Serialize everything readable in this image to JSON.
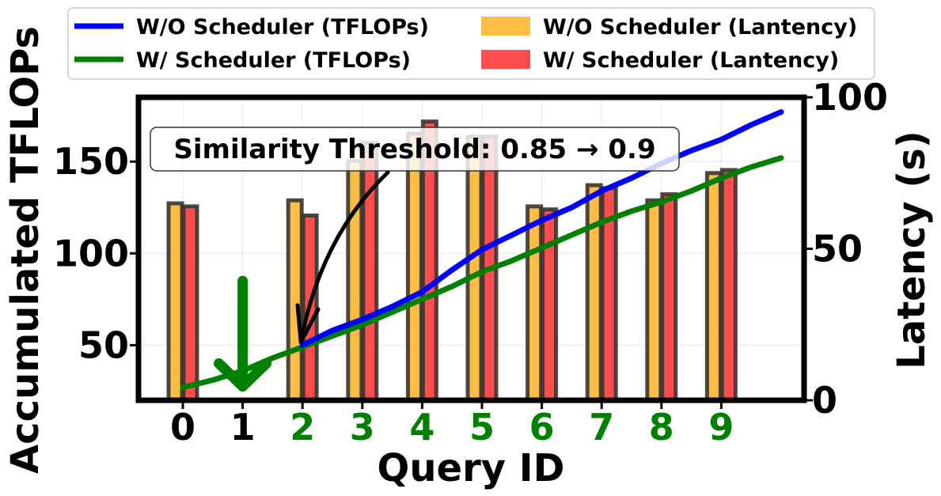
{
  "chart_data": {
    "type": "bar+line",
    "xlabel": "Query ID",
    "ylabel_left": "Accumulated TFLOPs",
    "ylabel_right": "Latency (s)",
    "categories": [
      "0",
      "1",
      "2",
      "3",
      "4",
      "5",
      "6",
      "7",
      "8",
      "9"
    ],
    "category_colors": [
      "#000000",
      "#000000",
      "#008000",
      "#008000",
      "#008000",
      "#008000",
      "#008000",
      "#008000",
      "#008000",
      "#008000"
    ],
    "yleft": {
      "min": 20,
      "max": 185,
      "ticks": [
        "50",
        "100",
        "150"
      ],
      "tick_values": [
        50,
        100,
        150
      ]
    },
    "yright": {
      "min": 0,
      "max": 100,
      "ticks": [
        "0",
        "50",
        "100"
      ],
      "tick_values": [
        0,
        50,
        100
      ]
    },
    "grid": true,
    "legend_position": "top, outside, two columns",
    "bar_series": [
      {
        "name": "W/O Scheduler (Lantency)",
        "color": "#ffbd45",
        "values": [
          65,
          null,
          66,
          79,
          88,
          87,
          64,
          71,
          66,
          75
        ]
      },
      {
        "name": "W/ Scheduler (Lantency)",
        "color": "#ff4d4d",
        "values": [
          64,
          null,
          61,
          85,
          92,
          87,
          63,
          70,
          68,
          76
        ]
      }
    ],
    "line_series": [
      {
        "name": "W/O Scheduler (TFLOPs)",
        "color": "#0000ff",
        "x": [
          2,
          2.5,
          3,
          3.5,
          4,
          4.5,
          5,
          5.5,
          6,
          6.5,
          7,
          7.5,
          8,
          8.5,
          9,
          9.5,
          10
        ],
        "y": [
          50,
          58,
          64,
          71,
          79,
          91,
          102,
          110,
          118,
          125,
          134,
          141,
          149,
          156,
          162,
          170,
          177
        ]
      },
      {
        "name": "W/ Scheduler (TFLOPs)",
        "color": "#008000",
        "x": [
          0,
          0.5,
          1,
          1.5,
          2,
          2.5,
          3,
          3.5,
          4,
          4.5,
          5,
          5.5,
          6,
          6.5,
          7,
          7.5,
          8,
          8.5,
          9,
          9.5,
          10
        ],
        "y": [
          27,
          31,
          36,
          43,
          49,
          55,
          61,
          68,
          75,
          82,
          90,
          96,
          103,
          110,
          117,
          123,
          128,
          134,
          141,
          147,
          152
        ]
      }
    ],
    "annotations": [
      {
        "text": "Similarity Threshold: 0.85 → 0.9",
        "arrow_points_to": {
          "x": 2,
          "y": 50
        }
      },
      {
        "text": "",
        "arrow": "down",
        "at_x": 1,
        "from_y": 85,
        "to_y": 25,
        "color": "#008000"
      }
    ]
  }
}
